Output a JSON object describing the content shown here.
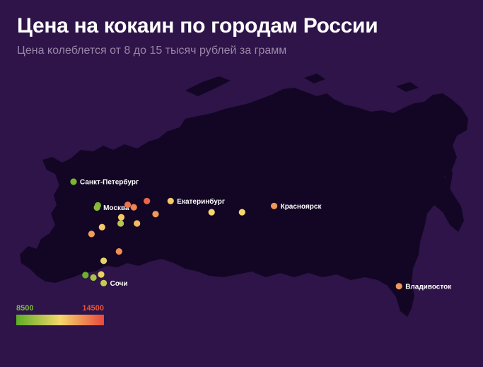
{
  "title": "Цена на кокаин по городам России",
  "subtitle": "Цена колеблется от 8 до 15 тысяч рублей за грамм",
  "colors": {
    "background": "#2e1448",
    "land": "#120624",
    "low": "#5cad24",
    "mid": "#f5d76a",
    "high": "#e8483e"
  },
  "legend": {
    "min": "8500",
    "max": "14500"
  },
  "cities": [
    {
      "name": "Санкт-Петербург",
      "lon": 30.3,
      "lat": 59.9,
      "level": 0.1
    },
    {
      "name": "",
      "lon": 37.9,
      "lat": 56.1,
      "level": 0.1
    },
    {
      "name": "Москва",
      "lon": 37.6,
      "lat": 55.75,
      "level": 0.15
    },
    {
      "name": "",
      "lon": 39.2,
      "lat": 52.6,
      "level": 0.55
    },
    {
      "name": "",
      "lon": 35.9,
      "lat": 51.5,
      "level": 0.7
    },
    {
      "name": "",
      "lon": 45.2,
      "lat": 54.2,
      "level": 0.55
    },
    {
      "name": "",
      "lon": 47.2,
      "lat": 56.2,
      "level": 0.85
    },
    {
      "name": "",
      "lon": 49.1,
      "lat": 55.8,
      "level": 0.78
    },
    {
      "name": "",
      "lon": 53.2,
      "lat": 56.8,
      "level": 0.9
    },
    {
      "name": "Екатеринбург",
      "lon": 60.6,
      "lat": 56.8,
      "level": 0.55
    },
    {
      "name": "",
      "lon": 45.0,
      "lat": 53.2,
      "level": 0.3
    },
    {
      "name": "",
      "lon": 50.1,
      "lat": 53.2,
      "level": 0.6
    },
    {
      "name": "",
      "lon": 55.9,
      "lat": 54.7,
      "level": 0.72
    },
    {
      "name": "",
      "lon": 44.5,
      "lat": 48.7,
      "level": 0.75
    },
    {
      "name": "",
      "lon": 39.7,
      "lat": 47.2,
      "level": 0.45
    },
    {
      "name": "",
      "lon": 38.9,
      "lat": 45.0,
      "level": 0.45
    },
    {
      "name": "",
      "lon": 36.5,
      "lat": 44.5,
      "level": 0.25
    },
    {
      "name": "",
      "lon": 34.0,
      "lat": 44.9,
      "level": 0.05
    },
    {
      "name": "Сочи",
      "lon": 39.7,
      "lat": 43.6,
      "level": 0.35
    },
    {
      "name": "",
      "lon": 73.4,
      "lat": 55.0,
      "level": 0.5
    },
    {
      "name": "",
      "lon": 82.9,
      "lat": 55.0,
      "level": 0.5
    },
    {
      "name": "Красноярск",
      "lon": 92.9,
      "lat": 56.0,
      "level": 0.72
    },
    {
      "name": "Владивосток",
      "lon": 131.9,
      "lat": 43.1,
      "level": 0.72
    }
  ]
}
